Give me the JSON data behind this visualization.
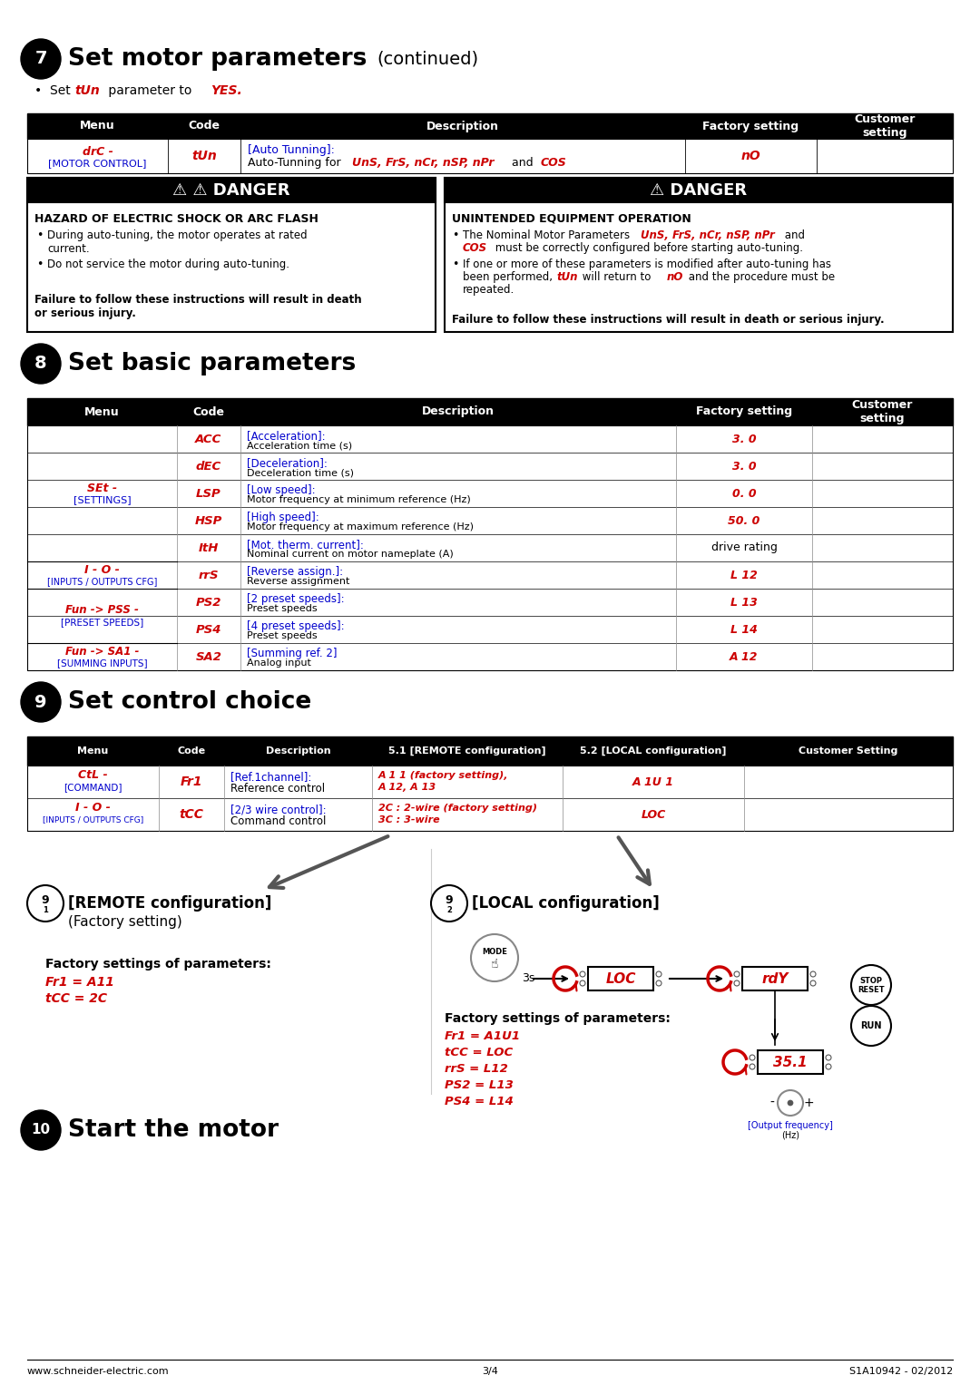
{
  "bg_color": "#ffffff",
  "black": "#000000",
  "red": "#cc0000",
  "blue": "#0000cc",
  "footer_left": "www.schneider-electric.com",
  "footer_center": "3/4",
  "footer_right": "S1A10942 - 02/2012"
}
